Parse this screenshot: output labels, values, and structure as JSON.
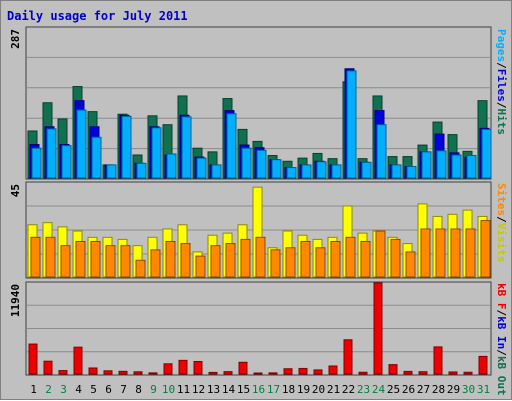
{
  "title": "Daily usage for July 2011",
  "colors": {
    "background": "#c0c0c0",
    "plot_bg": "#c0c0c0",
    "grid": "#8c8c8c",
    "title": "#0000cc",
    "hits": "#107050",
    "files": "#0000dd",
    "pages": "#00b0ff",
    "visits": "#ffff00",
    "sites": "#ff8800",
    "kbf": "#ee0000",
    "weekday": "#000000",
    "weekend": "#008040"
  },
  "chart_data": [
    {
      "type": "bar",
      "title": "Daily usage for July 2011",
      "ymax_label": "287",
      "ylim": [
        0,
        287
      ],
      "right_label": {
        "pages": "Pages",
        "files": "Files",
        "hits": "Hits",
        "sep": "/"
      },
      "categories": [
        "1",
        "2",
        "3",
        "4",
        "5",
        "6",
        "7",
        "8",
        "9",
        "10",
        "11",
        "12",
        "13",
        "14",
        "15",
        "16",
        "17",
        "18",
        "19",
        "20",
        "21",
        "22",
        "23",
        "24",
        "25",
        "26",
        "27",
        "28",
        "29",
        "30",
        "31"
      ],
      "weekend_days": [
        "2",
        "3",
        "9",
        "10",
        "16",
        "17",
        "23",
        "24",
        "30",
        "31"
      ],
      "series": [
        {
          "name": "Hits",
          "values": [
            90,
            144,
            113,
            175,
            127,
            25,
            122,
            44,
            119,
            102,
            157,
            57,
            50,
            152,
            93,
            70,
            43,
            32,
            38,
            47,
            37,
            184,
            37,
            157,
            41,
            41,
            63,
            107,
            83,
            51,
            148
          ]
        },
        {
          "name": "Files",
          "values": [
            64,
            98,
            64,
            148,
            98,
            25,
            120,
            28,
            98,
            44,
            120,
            40,
            25,
            129,
            63,
            58,
            35,
            20,
            25,
            32,
            25,
            209,
            30,
            129,
            25,
            22,
            50,
            84,
            48,
            40,
            95
          ]
        },
        {
          "name": "Pages",
          "values": [
            57,
            94,
            62,
            130,
            78,
            25,
            118,
            28,
            96,
            46,
            117,
            38,
            25,
            123,
            57,
            53,
            35,
            20,
            25,
            31,
            25,
            205,
            30,
            102,
            25,
            22,
            50,
            52,
            44,
            43,
            93
          ]
        }
      ]
    },
    {
      "type": "bar",
      "ymax_label": "45",
      "ylim": [
        0,
        45
      ],
      "right_label": {
        "sites": "Sites",
        "visits": "Visits",
        "sep": "/"
      },
      "series": [
        {
          "name": "Visits",
          "values": [
            25,
            26,
            24,
            22,
            19,
            19,
            18,
            15,
            19,
            23,
            25,
            12,
            20,
            21,
            25,
            43,
            14,
            22,
            20,
            18,
            19,
            34,
            21,
            22,
            19,
            16,
            35,
            29,
            30,
            32,
            29
          ]
        },
        {
          "name": "Sites",
          "values": [
            19,
            19,
            15,
            17,
            17,
            15,
            15,
            8,
            13,
            17,
            16,
            10,
            15,
            16,
            18,
            19,
            13,
            14,
            17,
            14,
            17,
            19,
            17,
            22,
            18,
            12,
            23,
            23,
            23,
            23,
            27
          ]
        }
      ]
    },
    {
      "type": "bar",
      "ymax_label": "11940",
      "ylim": [
        0,
        11940
      ],
      "right_label": {
        "kbf": "kB F",
        "kbin": "kB In",
        "kbout": "kB Out",
        "sep": "/"
      },
      "series": [
        {
          "name": "kB F",
          "values": [
            3930,
            1680,
            450,
            3520,
            790,
            420,
            350,
            290,
            150,
            1340,
            1790,
            1640,
            210,
            310,
            1540,
            100,
            150,
            690,
            730,
            540,
            1050,
            4490,
            230,
            11940,
            1230,
            340,
            300,
            3560,
            270,
            230,
            2310
          ]
        }
      ]
    }
  ]
}
